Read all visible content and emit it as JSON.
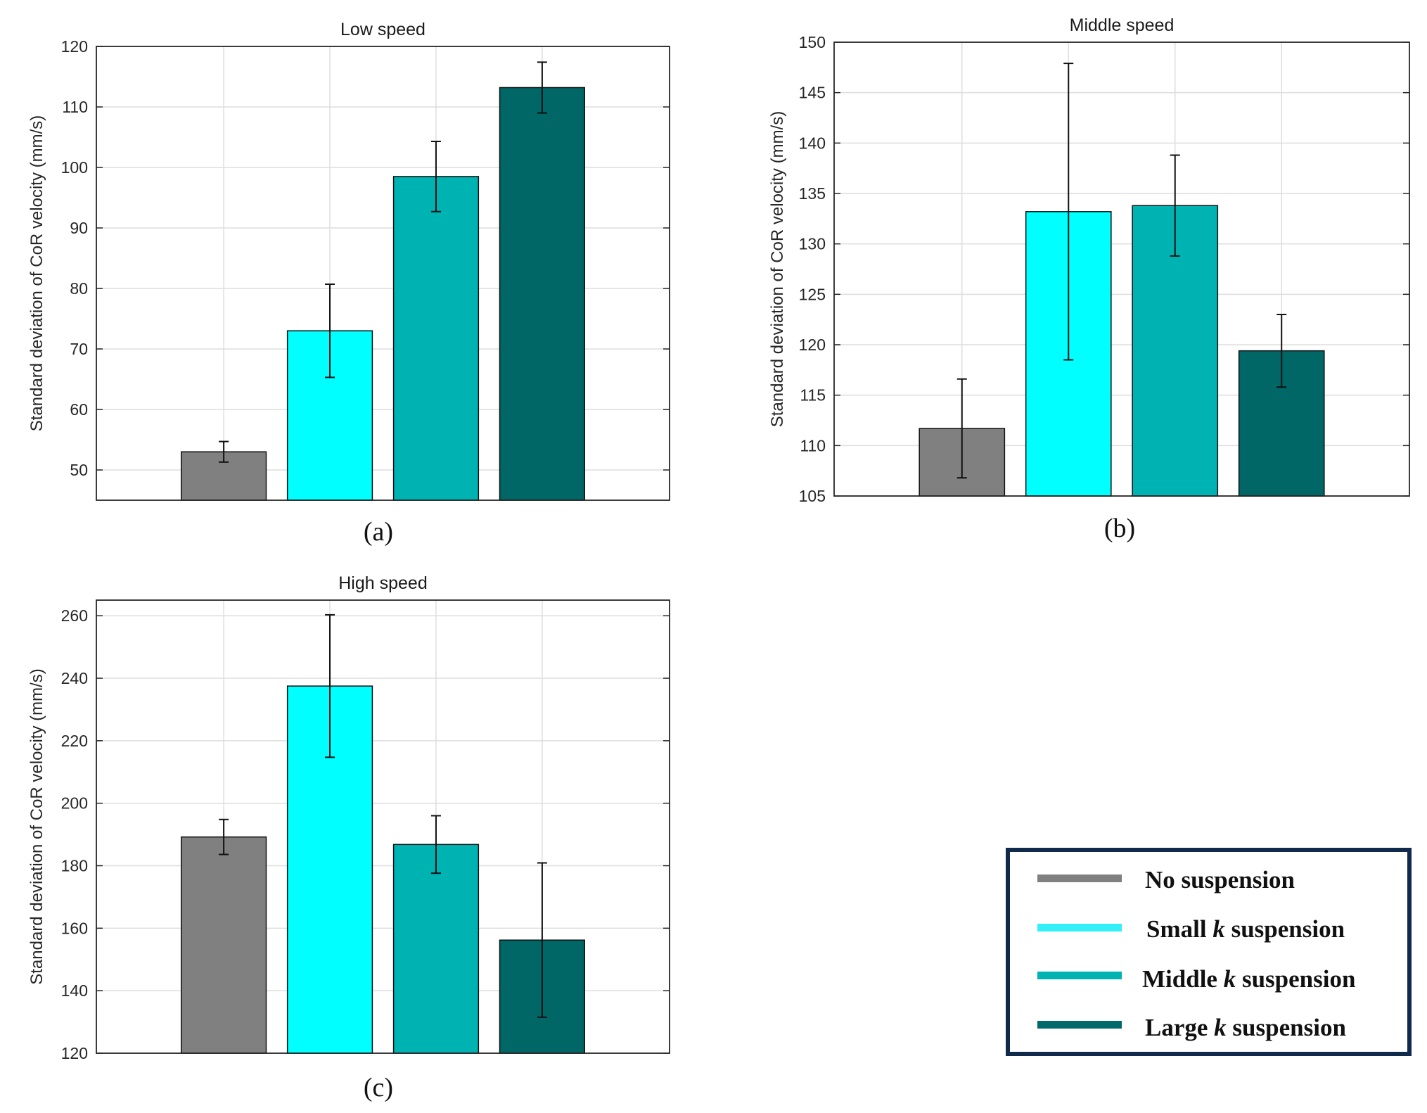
{
  "chart_data": [
    {
      "type": "bar",
      "title": "Low speed",
      "caption": "(a)",
      "ylabel": "Standard deviation of CoR velocity (mm/s)",
      "ylim": [
        45,
        120
      ],
      "yticks": [
        50,
        60,
        70,
        80,
        90,
        100,
        110,
        120
      ],
      "series": [
        {
          "name": "No suspension",
          "value": 53,
          "error": 1.7
        },
        {
          "name": "Small k suspension",
          "value": 73,
          "error": 7.7
        },
        {
          "name": "Middle k suspension",
          "value": 98.5,
          "error": 5.8
        },
        {
          "name": "Large k suspension",
          "value": 113.2,
          "error": 4.2
        }
      ]
    },
    {
      "type": "bar",
      "title": "Middle speed",
      "caption": "(b)",
      "ylabel": "Standard deviation of CoR velocity (mm/s)",
      "ylim": [
        105,
        150
      ],
      "yticks": [
        105,
        110,
        115,
        120,
        125,
        130,
        135,
        140,
        145,
        150
      ],
      "series": [
        {
          "name": "No suspension",
          "value": 111.7,
          "error": 4.9
        },
        {
          "name": "Small k suspension",
          "value": 133.2,
          "error": 14.7
        },
        {
          "name": "Middle k suspension",
          "value": 133.8,
          "error": 5.0
        },
        {
          "name": "Large k suspension",
          "value": 119.4,
          "error": 3.6
        }
      ]
    },
    {
      "type": "bar",
      "title": "High speed",
      "caption": "(c)",
      "ylabel": "Standard deviation of CoR velocity (mm/s)",
      "ylim": [
        120,
        265
      ],
      "yticks": [
        120,
        140,
        160,
        180,
        200,
        220,
        240,
        260
      ],
      "series": [
        {
          "name": "No suspension",
          "value": 189.2,
          "error": 5.6
        },
        {
          "name": "Small k suspension",
          "value": 237.5,
          "error": 22.8
        },
        {
          "name": "Middle k suspension",
          "value": 186.8,
          "error": 9.2
        },
        {
          "name": "Large k suspension",
          "value": 156.2,
          "error": 24.7
        }
      ]
    }
  ],
  "legend": {
    "items": [
      {
        "pre": "No suspension",
        "k": "",
        "post": "",
        "color": "#808080"
      },
      {
        "pre": "Small ",
        "k": "k",
        "post": " suspension",
        "color": "#33f0f8"
      },
      {
        "pre": "Middle ",
        "k": "k",
        "post": " suspension",
        "color": "#00b3b3"
      },
      {
        "pre": "Large ",
        "k": "k",
        "post": " suspension",
        "color": "#006a6a"
      }
    ]
  },
  "colors": {
    "bars": [
      "#808080",
      "#00ffff",
      "#00b3b3",
      "#006666"
    ],
    "legend_border": "#0f2a4a"
  }
}
